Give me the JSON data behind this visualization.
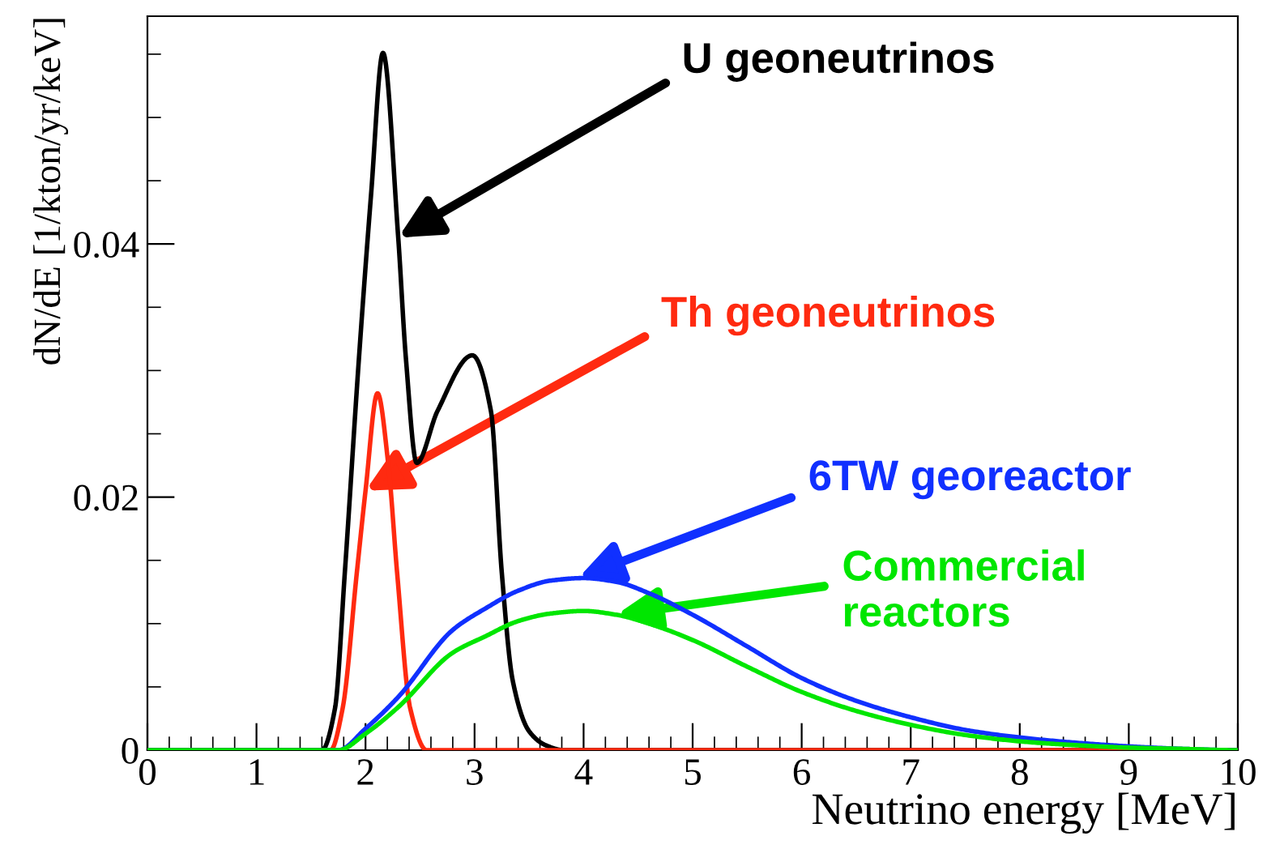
{
  "chart_data": {
    "type": "line",
    "xlabel": "Neutrino energy [MeV]",
    "ylabel": "dN/dE [1/kton/yr/keV]",
    "xlim": [
      0,
      10
    ],
    "ylim": [
      0,
      0.058
    ],
    "xticks": [
      0,
      1,
      2,
      3,
      4,
      5,
      6,
      7,
      8,
      9,
      10
    ],
    "yticks": [
      0,
      0.02,
      0.04
    ],
    "grid": false,
    "legend": false,
    "marker": "none",
    "line_style": "solid",
    "series": [
      {
        "color": "#000000",
        "x": [
          0,
          1.6,
          1.72,
          1.81,
          1.94,
          2.05,
          2.16,
          2.3,
          2.37,
          2.47,
          2.66,
          2.98,
          3.15,
          3.25,
          3.35,
          3.5,
          3.65,
          3.82,
          4.0,
          10
        ],
        "values": [
          0,
          0,
          0.0033,
          0.014,
          0.031,
          0.0438,
          0.0551,
          0.0405,
          0.031,
          0.0227,
          0.0268,
          0.0312,
          0.0268,
          0.014,
          0.0055,
          0.0015,
          0.0004,
          0,
          0,
          0
        ]
      },
      {
        "color": "#ff2a10",
        "x": [
          0,
          1.68,
          1.79,
          1.92,
          2.0,
          2.11,
          2.21,
          2.29,
          2.41,
          2.56,
          10
        ],
        "values": [
          0,
          0,
          0.0033,
          0.014,
          0.0205,
          0.0282,
          0.0225,
          0.014,
          0.0033,
          0,
          0
        ]
      },
      {
        "color": "#1030ff",
        "x": [
          0,
          1.75,
          2.0,
          2.3,
          2.8,
          3.1,
          3.4,
          3.7,
          4.0,
          4.3,
          4.6,
          5.0,
          5.5,
          6.0,
          6.5,
          7.0,
          7.5,
          8.0,
          8.5,
          9.0,
          9.5,
          10
        ],
        "values": [
          0,
          0,
          0.0017,
          0.0042,
          0.0095,
          0.0112,
          0.0126,
          0.0134,
          0.0136,
          0.0133,
          0.0124,
          0.0107,
          0.0082,
          0.0057,
          0.0039,
          0.0026,
          0.0016,
          0.001,
          0.0006,
          0.0003,
          0.0001,
          0
        ]
      },
      {
        "color": "#00e600",
        "x": [
          0,
          1.75,
          2.0,
          2.3,
          2.8,
          3.1,
          3.4,
          3.7,
          4.0,
          4.3,
          4.6,
          5.0,
          5.5,
          6.0,
          6.5,
          7.0,
          7.5,
          8.0,
          8.5,
          9.0,
          9.5,
          10
        ],
        "values": [
          0,
          0,
          0.0013,
          0.0034,
          0.0077,
          0.009,
          0.0102,
          0.0108,
          0.011,
          0.0107,
          0.01,
          0.0087,
          0.0066,
          0.0046,
          0.0031,
          0.002,
          0.0012,
          0.0007,
          0.0004,
          0.0002,
          0.0001,
          0
        ]
      }
    ],
    "annotations": [
      {
        "text": "U geoneutrinos",
        "x": 2.3,
        "y": 0.0405
      },
      {
        "text": "Th geoneutrinos",
        "x": 2.0,
        "y": 0.0205
      },
      {
        "text": "6TW georeactor",
        "x": 3.95,
        "y": 0.0136
      },
      {
        "text": "Commercial\nreactors",
        "x": 4.3,
        "y": 0.0107
      }
    ]
  }
}
